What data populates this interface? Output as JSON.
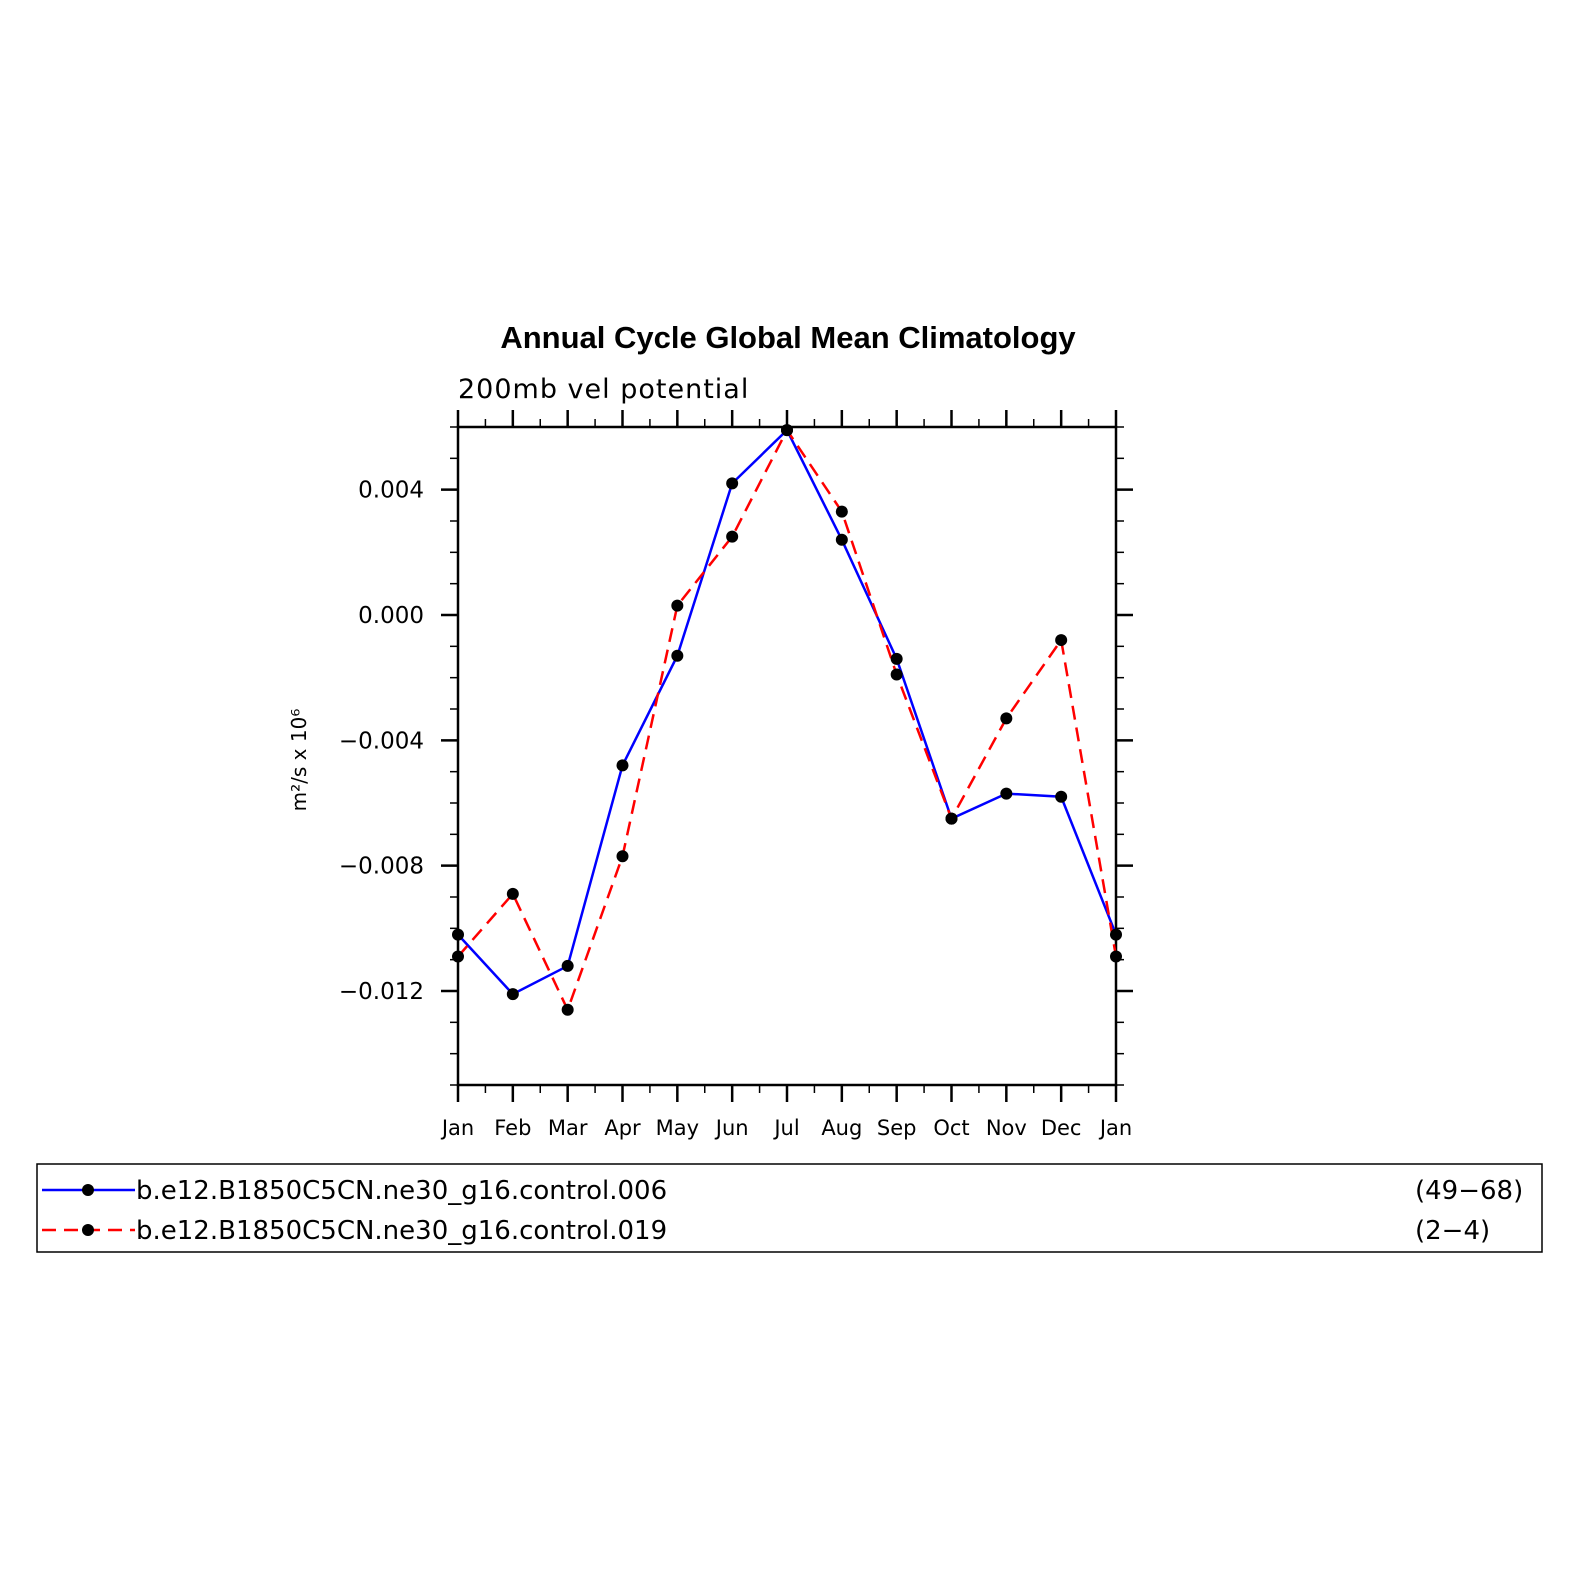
{
  "chart_data": {
    "type": "line",
    "title": "Annual Cycle Global Mean Climatology",
    "subtitle": "200mb vel potential",
    "ylabel": "m²/s x 10⁶",
    "ylim": [
      -0.015,
      0.006
    ],
    "yticks": [
      0.004,
      0.0,
      -0.004,
      -0.008,
      -0.012
    ],
    "ytick_labels": [
      "0.004",
      "0.000",
      "−0.004",
      "−0.008",
      "−0.012"
    ],
    "categories": [
      "Jan",
      "Feb",
      "Mar",
      "Apr",
      "May",
      "Jun",
      "Jul",
      "Aug",
      "Sep",
      "Oct",
      "Nov",
      "Dec",
      "Jan"
    ],
    "grid": false,
    "legend_position": "bottom",
    "series": [
      {
        "name": "b.e12.B1850C5CN.ne30_g16.control.006",
        "years": "(49−68)",
        "color": "#0000ff",
        "dash": "solid",
        "values": [
          -0.0102,
          -0.0121,
          -0.0112,
          -0.0048,
          -0.0013,
          0.0042,
          0.0059,
          0.0024,
          -0.0014,
          -0.0065,
          -0.0057,
          -0.0058,
          -0.0102
        ]
      },
      {
        "name": "b.e12.B1850C5CN.ne30_g16.control.019",
        "years": "(2−4)",
        "color": "#ff0000",
        "dash": "dashed",
        "values": [
          -0.0109,
          -0.0089,
          -0.0126,
          -0.0077,
          0.0003,
          0.0025,
          0.0059,
          0.0033,
          -0.0019,
          -0.0065,
          -0.0033,
          -0.0008,
          -0.0109
        ]
      }
    ]
  }
}
